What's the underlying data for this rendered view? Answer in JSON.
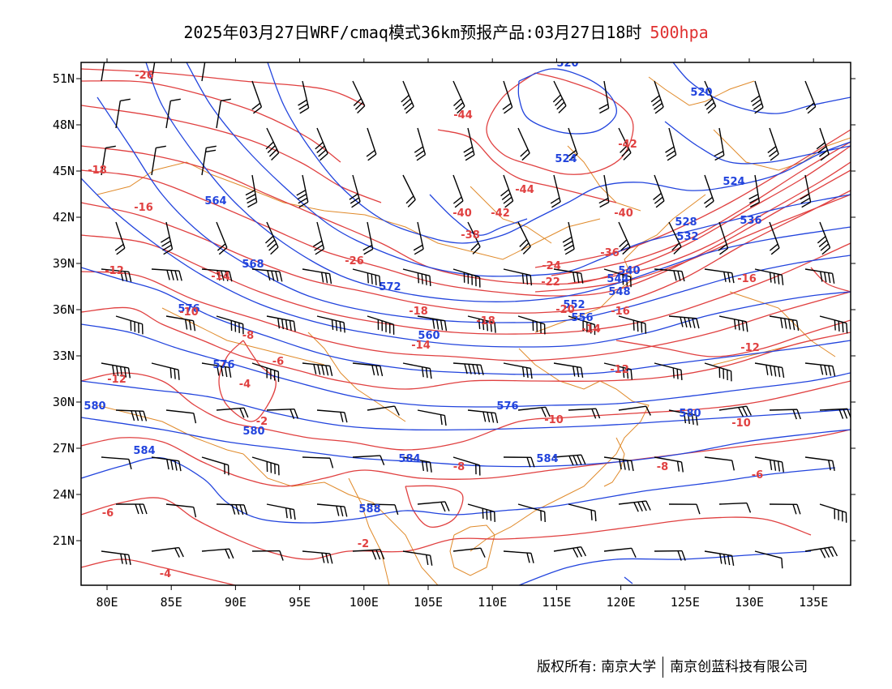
{
  "title": {
    "main": "2025年03月27日WRF/cmaq模式36km预报产品:03月27日18时",
    "level": "500hpa",
    "level_color": "#e03030"
  },
  "axes": {
    "lon_labels": [
      "80E",
      "85E",
      "90E",
      "95E",
      "100E",
      "105E",
      "110E",
      "115E",
      "120E",
      "125E",
      "130E",
      "135E"
    ],
    "lat_labels": [
      "51N",
      "48N",
      "45N",
      "42N",
      "39N",
      "36N",
      "33N",
      "30N",
      "27N",
      "24N",
      "21N"
    ]
  },
  "geopotential_labels": [
    "520",
    "520",
    "524",
    "524",
    "528",
    "532",
    "536",
    "540",
    "544",
    "548",
    "552",
    "556",
    "560",
    "564",
    "568",
    "572",
    "576",
    "576",
    "576",
    "580",
    "580",
    "580",
    "584",
    "584",
    "584",
    "588"
  ],
  "temperature_labels": [
    "-26",
    "-18",
    "-16",
    "-14",
    "-12",
    "-12",
    "-10",
    "-8",
    "-6",
    "-4",
    "-2",
    "-44",
    "-44",
    "-42",
    "-42",
    "-40",
    "-40",
    "-38",
    "-36",
    "-26",
    "-24",
    "-22",
    "-20",
    "-18",
    "-18",
    "-16",
    "-16",
    "-14",
    "-14",
    "-12",
    "-12",
    "-10",
    "-10",
    "-8",
    "-8",
    "-6",
    "-6",
    "-4",
    "-2"
  ],
  "colors": {
    "height_contour": "#2244dd",
    "temperature_contour": "#e04040",
    "coastline": "#e08a2a",
    "wind_barb": "#000000",
    "frame": "#000000"
  },
  "footer": {
    "copyright": "版权所有: 南京大学",
    "company": "南京创蓝科技有限公司"
  }
}
